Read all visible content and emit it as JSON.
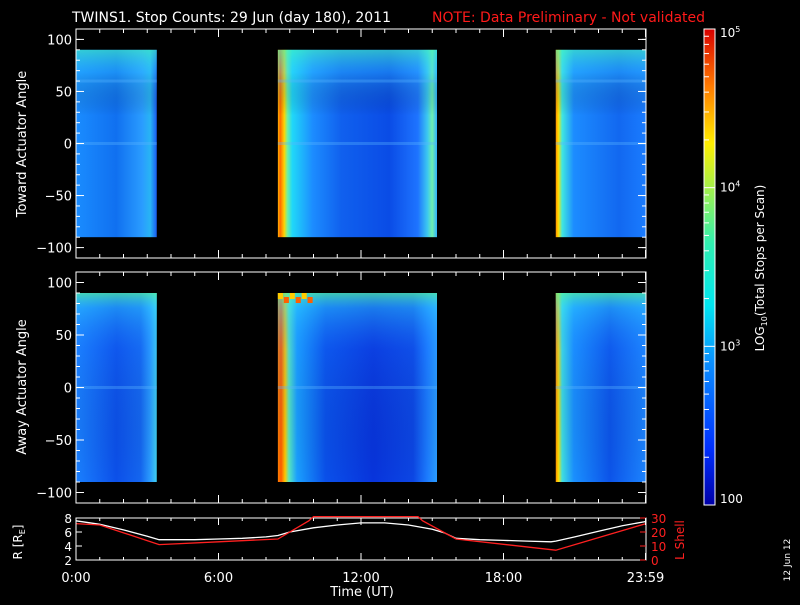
{
  "title": {
    "main": "TWINS1. Stop Counts: 29 Jun (day 180), 2011",
    "note": "NOTE: Data Preliminary - Not validated"
  },
  "date_stamp": "12 Jun 12",
  "colors": {
    "background": "#000000",
    "axes": "#ffffff",
    "note": "#ff1a1a",
    "lshell_line": "#ff2020",
    "r_line": "#ffffff"
  },
  "chart_data": [
    {
      "type": "heatmap",
      "name": "toward",
      "ylabel": "Toward Actuator Angle",
      "ylim": [
        -110,
        110
      ],
      "yticks": [
        100,
        50,
        0,
        -50,
        -100
      ],
      "ytick_labels": [
        "100",
        "50",
        "0",
        "−50",
        "−100"
      ],
      "angle_range": [
        -90,
        90
      ],
      "xlim_hours": [
        0,
        24
      ],
      "data_intervals_hours": [
        [
          0.0,
          3.4
        ],
        [
          8.5,
          15.2
        ],
        [
          20.2,
          24.0
        ]
      ],
      "colorbar_ref": "log10_total_stops_per_scan"
    },
    {
      "type": "heatmap",
      "name": "away",
      "ylabel": "Away Actuator Angle",
      "ylim": [
        -110,
        110
      ],
      "yticks": [
        100,
        50,
        0,
        -50,
        -100
      ],
      "ytick_labels": [
        "100",
        "50",
        "0",
        "−50",
        "−100"
      ],
      "angle_range": [
        -90,
        90
      ],
      "xlim_hours": [
        0,
        24
      ],
      "data_intervals_hours": [
        [
          0.0,
          3.4
        ],
        [
          8.5,
          15.2
        ],
        [
          20.2,
          24.0
        ]
      ],
      "colorbar_ref": "log10_total_stops_per_scan"
    },
    {
      "type": "line",
      "name": "ephemeris",
      "x_ticks": [
        "0:00",
        "6:00",
        "12:00",
        "18:00",
        "23:59"
      ],
      "x_tick_hours": [
        0,
        6,
        12,
        18,
        23.98
      ],
      "xlabel": "Time (UT)",
      "left_axis": {
        "label_main": "R [R",
        "label_sub": "E",
        "label_end": "]",
        "ylim": [
          2,
          8
        ],
        "ticks": [
          2,
          4,
          6,
          8
        ]
      },
      "right_axis": {
        "label": "L Shell",
        "ylim": [
          0,
          30
        ],
        "ticks": [
          0,
          10,
          20,
          30
        ]
      },
      "series": [
        {
          "axis": "left",
          "x": [
            0,
            1,
            2,
            3,
            3.5,
            5,
            6,
            7,
            8,
            8.5,
            9,
            10,
            11,
            12,
            13,
            14,
            15,
            15.5,
            16,
            17,
            18,
            19,
            20,
            20.2,
            21,
            22,
            23,
            24
          ],
          "y": [
            7.6,
            7.1,
            6.3,
            5.4,
            4.9,
            4.9,
            5.0,
            5.1,
            5.3,
            5.5,
            6.0,
            6.6,
            7.0,
            7.3,
            7.3,
            7.0,
            6.4,
            5.9,
            5.1,
            4.9,
            4.8,
            4.7,
            4.6,
            4.7,
            5.3,
            6.1,
            6.9,
            7.5
          ]
        },
        {
          "axis": "right",
          "x": [
            0,
            1,
            3.5,
            6,
            8.5,
            9.8,
            10.0,
            14.4,
            14.6,
            16,
            20.2,
            24
          ],
          "y": [
            26,
            25,
            11,
            13,
            15,
            28,
            31,
            31,
            28,
            15,
            7,
            26
          ]
        }
      ]
    }
  ],
  "colorbar": {
    "label_main": "LOG",
    "label_sub": "10",
    "label_rest": "(Total Stops per Scan)",
    "log_range": [
      2,
      5
    ],
    "ticks": [
      {
        "mant": "10",
        "exp": "5",
        "value": 5
      },
      {
        "mant": "10",
        "exp": "4",
        "value": 4
      },
      {
        "mant": "10",
        "exp": "3",
        "value": 3
      },
      {
        "mant": "100",
        "exp": "",
        "value": 2
      }
    ]
  }
}
